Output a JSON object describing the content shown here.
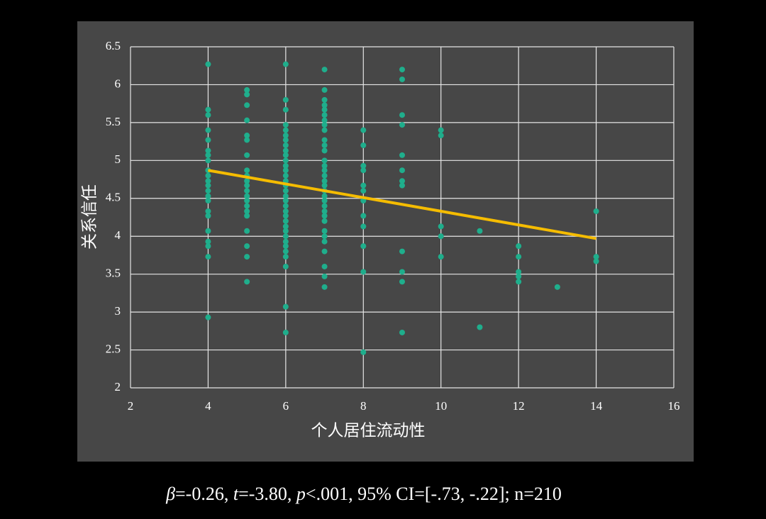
{
  "chart_data": {
    "type": "scatter",
    "x_label": "个人居住流动性",
    "y_label": "关系信任",
    "xlim": [
      2,
      16
    ],
    "xticks": [
      2,
      4,
      6,
      8,
      10,
      12,
      14,
      16
    ],
    "ylim": [
      2,
      6.5
    ],
    "yticks": [
      2,
      2.5,
      3,
      3.5,
      4,
      4.5,
      5,
      5.5,
      6,
      6.5
    ],
    "grid": true,
    "series": [
      {
        "color": "#1fae8c",
        "x": [
          4,
          4,
          4,
          4,
          4,
          4,
          4,
          4,
          4,
          4,
          4,
          4,
          4,
          4,
          4,
          4,
          4,
          4,
          4,
          4,
          4,
          4,
          5,
          5,
          5,
          5,
          5,
          5,
          5,
          5,
          5,
          5,
          5,
          5,
          5,
          5,
          5,
          5,
          5,
          5,
          5,
          5,
          5,
          6,
          6,
          6,
          6,
          6,
          6,
          6,
          6,
          6,
          6,
          6,
          6,
          6,
          6,
          6,
          6,
          6,
          6,
          6,
          6,
          6,
          6,
          6,
          6,
          6,
          6,
          6,
          6,
          6,
          6,
          6,
          6,
          6,
          7,
          7,
          7,
          7,
          7,
          7,
          7,
          7,
          7,
          7,
          7,
          7,
          7,
          7,
          7,
          7,
          7,
          7,
          7,
          7,
          7,
          7,
          7,
          7,
          7,
          7,
          7,
          7,
          7,
          7,
          7,
          7,
          8,
          8,
          8,
          8,
          8,
          8,
          8,
          8,
          8,
          8,
          8,
          8,
          9,
          9,
          9,
          9,
          9,
          9,
          9,
          9,
          9,
          9,
          9,
          9,
          10,
          10,
          10,
          10,
          10,
          11,
          11,
          12,
          12,
          12,
          12,
          12,
          13,
          14,
          14,
          14
        ],
        "y": [
          6.27,
          5.67,
          5.6,
          5.4,
          5.27,
          5.13,
          5.07,
          5.0,
          4.87,
          4.8,
          4.73,
          4.67,
          4.6,
          4.53,
          4.47,
          4.33,
          4.27,
          4.07,
          3.93,
          3.87,
          3.73,
          2.93,
          5.93,
          5.87,
          5.73,
          5.53,
          5.33,
          5.27,
          5.07,
          4.87,
          4.8,
          4.73,
          4.67,
          4.6,
          4.53,
          4.47,
          4.4,
          4.33,
          4.27,
          4.07,
          3.87,
          3.73,
          3.4,
          6.27,
          5.8,
          5.67,
          5.47,
          5.4,
          5.33,
          5.27,
          5.2,
          5.13,
          5.07,
          5.0,
          4.93,
          4.87,
          4.8,
          4.73,
          4.67,
          4.6,
          4.53,
          4.47,
          4.4,
          4.33,
          4.27,
          4.2,
          4.13,
          4.07,
          4.0,
          3.93,
          3.87,
          3.8,
          3.73,
          3.6,
          3.07,
          2.73,
          6.2,
          5.93,
          5.8,
          5.73,
          5.67,
          5.6,
          5.53,
          5.47,
          5.4,
          5.27,
          5.2,
          5.13,
          5.0,
          4.93,
          4.87,
          4.8,
          4.73,
          4.67,
          4.6,
          4.53,
          4.47,
          4.4,
          4.33,
          4.27,
          4.2,
          4.07,
          4.0,
          3.93,
          3.8,
          3.6,
          3.47,
          3.33,
          5.4,
          5.2,
          4.93,
          4.87,
          4.67,
          4.6,
          4.47,
          4.27,
          4.13,
          3.87,
          3.53,
          2.47,
          6.2,
          6.07,
          5.6,
          5.47,
          5.07,
          4.87,
          4.73,
          4.67,
          3.8,
          3.53,
          3.4,
          2.73,
          5.4,
          5.33,
          4.13,
          4.0,
          3.73,
          4.07,
          2.8,
          3.87,
          3.73,
          3.53,
          3.47,
          3.4,
          3.33,
          4.33,
          3.73,
          3.67
        ]
      }
    ],
    "trend_line": {
      "color": "#f5bc00",
      "x": [
        4,
        14
      ],
      "y": [
        4.87,
        3.97
      ]
    },
    "annotation": [
      {
        "text": "β",
        "italic": true
      },
      {
        "text": "=-0.26, ",
        "italic": false
      },
      {
        "text": "t",
        "italic": true
      },
      {
        "text": "=-3.80, ",
        "italic": false
      },
      {
        "text": "p",
        "italic": true
      },
      {
        "text": "<.001, 95% CI=[-.73, -.22]; n=210",
        "italic": false
      }
    ]
  }
}
